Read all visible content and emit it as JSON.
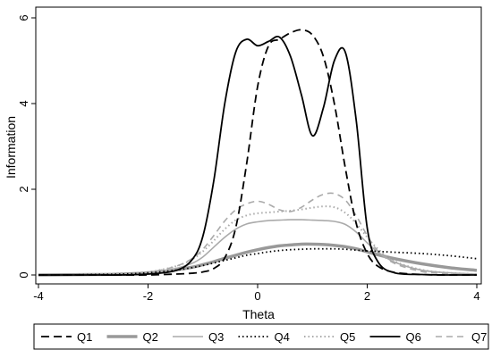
{
  "chart_data": {
    "type": "line",
    "title": "",
    "xlabel": "Theta",
    "ylabel": "Information",
    "xlim": [
      -4,
      4
    ],
    "ylim": [
      0,
      6
    ],
    "xticks": [
      -4,
      -2,
      0,
      2,
      4
    ],
    "yticks": [
      0,
      2,
      4,
      6
    ],
    "xtick_labels": [
      "-4",
      "-2",
      "0",
      "2",
      "4"
    ],
    "ytick_labels": [
      "0",
      "2",
      "4",
      "6"
    ],
    "grid": false,
    "legend_position": "bottom",
    "x": [
      -4,
      -3.5,
      -3,
      -2.5,
      -2,
      -1.5,
      -1.2,
      -1,
      -0.8,
      -0.6,
      -0.4,
      -0.2,
      0,
      0.2,
      0.4,
      0.6,
      0.8,
      1,
      1.2,
      1.4,
      1.6,
      1.8,
      2,
      2.2,
      2.5,
      3,
      3.5,
      4
    ],
    "series": [
      {
        "name": "Q1",
        "color": "#000000",
        "dash": "9,5",
        "width": 1.8,
        "values": [
          0,
          0,
          0,
          0,
          0,
          0.02,
          0.04,
          0.07,
          0.15,
          0.4,
          1.1,
          2.6,
          4.4,
          5.35,
          5.5,
          5.65,
          5.72,
          5.6,
          5.1,
          4.0,
          2.5,
          1.2,
          0.5,
          0.2,
          0.06,
          0.01,
          0,
          0
        ]
      },
      {
        "name": "Q2",
        "color": "#999999",
        "dash": "",
        "width": 3.5,
        "values": [
          0,
          0.005,
          0.01,
          0.02,
          0.05,
          0.12,
          0.18,
          0.24,
          0.31,
          0.39,
          0.46,
          0.53,
          0.59,
          0.64,
          0.68,
          0.7,
          0.72,
          0.72,
          0.71,
          0.69,
          0.66,
          0.61,
          0.54,
          0.47,
          0.38,
          0.26,
          0.17,
          0.11
        ]
      },
      {
        "name": "Q3",
        "color": "#aaaaaa",
        "dash": "",
        "width": 1.6,
        "values": [
          0,
          0,
          0.01,
          0.02,
          0.05,
          0.15,
          0.27,
          0.42,
          0.65,
          0.88,
          1.07,
          1.19,
          1.24,
          1.27,
          1.28,
          1.29,
          1.29,
          1.28,
          1.27,
          1.25,
          1.18,
          1.0,
          0.75,
          0.53,
          0.3,
          0.11,
          0.05,
          0.02
        ]
      },
      {
        "name": "Q4",
        "color": "#000000",
        "dash": "1.5,3",
        "width": 1.8,
        "values": [
          0,
          0,
          0.01,
          0.02,
          0.05,
          0.11,
          0.17,
          0.22,
          0.28,
          0.34,
          0.4,
          0.46,
          0.5,
          0.54,
          0.57,
          0.59,
          0.6,
          0.61,
          0.61,
          0.61,
          0.6,
          0.58,
          0.56,
          0.55,
          0.53,
          0.5,
          0.45,
          0.38
        ]
      },
      {
        "name": "Q5",
        "color": "#aaaaaa",
        "dash": "1.5,3",
        "width": 2,
        "values": [
          0,
          0,
          0.01,
          0.03,
          0.07,
          0.2,
          0.36,
          0.55,
          0.8,
          1.07,
          1.28,
          1.39,
          1.44,
          1.46,
          1.48,
          1.5,
          1.53,
          1.57,
          1.6,
          1.58,
          1.45,
          1.2,
          0.88,
          0.6,
          0.32,
          0.12,
          0.05,
          0.02
        ]
      },
      {
        "name": "Q6",
        "color": "#000000",
        "dash": "",
        "width": 1.8,
        "values": [
          0,
          0,
          0,
          0,
          0.02,
          0.1,
          0.35,
          0.9,
          2.2,
          4.0,
          5.2,
          5.5,
          5.35,
          5.45,
          5.55,
          5.1,
          4.2,
          3.25,
          3.9,
          5.0,
          5.2,
          3.6,
          1.1,
          0.3,
          0.05,
          0.01,
          0,
          0
        ]
      },
      {
        "name": "Q7",
        "color": "#aaaaaa",
        "dash": "7,5",
        "width": 1.6,
        "values": [
          0,
          0,
          0.01,
          0.02,
          0.06,
          0.2,
          0.38,
          0.6,
          0.92,
          1.26,
          1.52,
          1.66,
          1.72,
          1.65,
          1.52,
          1.48,
          1.58,
          1.75,
          1.88,
          1.9,
          1.75,
          1.38,
          0.92,
          0.55,
          0.27,
          0.08,
          0.03,
          0.01
        ]
      }
    ]
  }
}
